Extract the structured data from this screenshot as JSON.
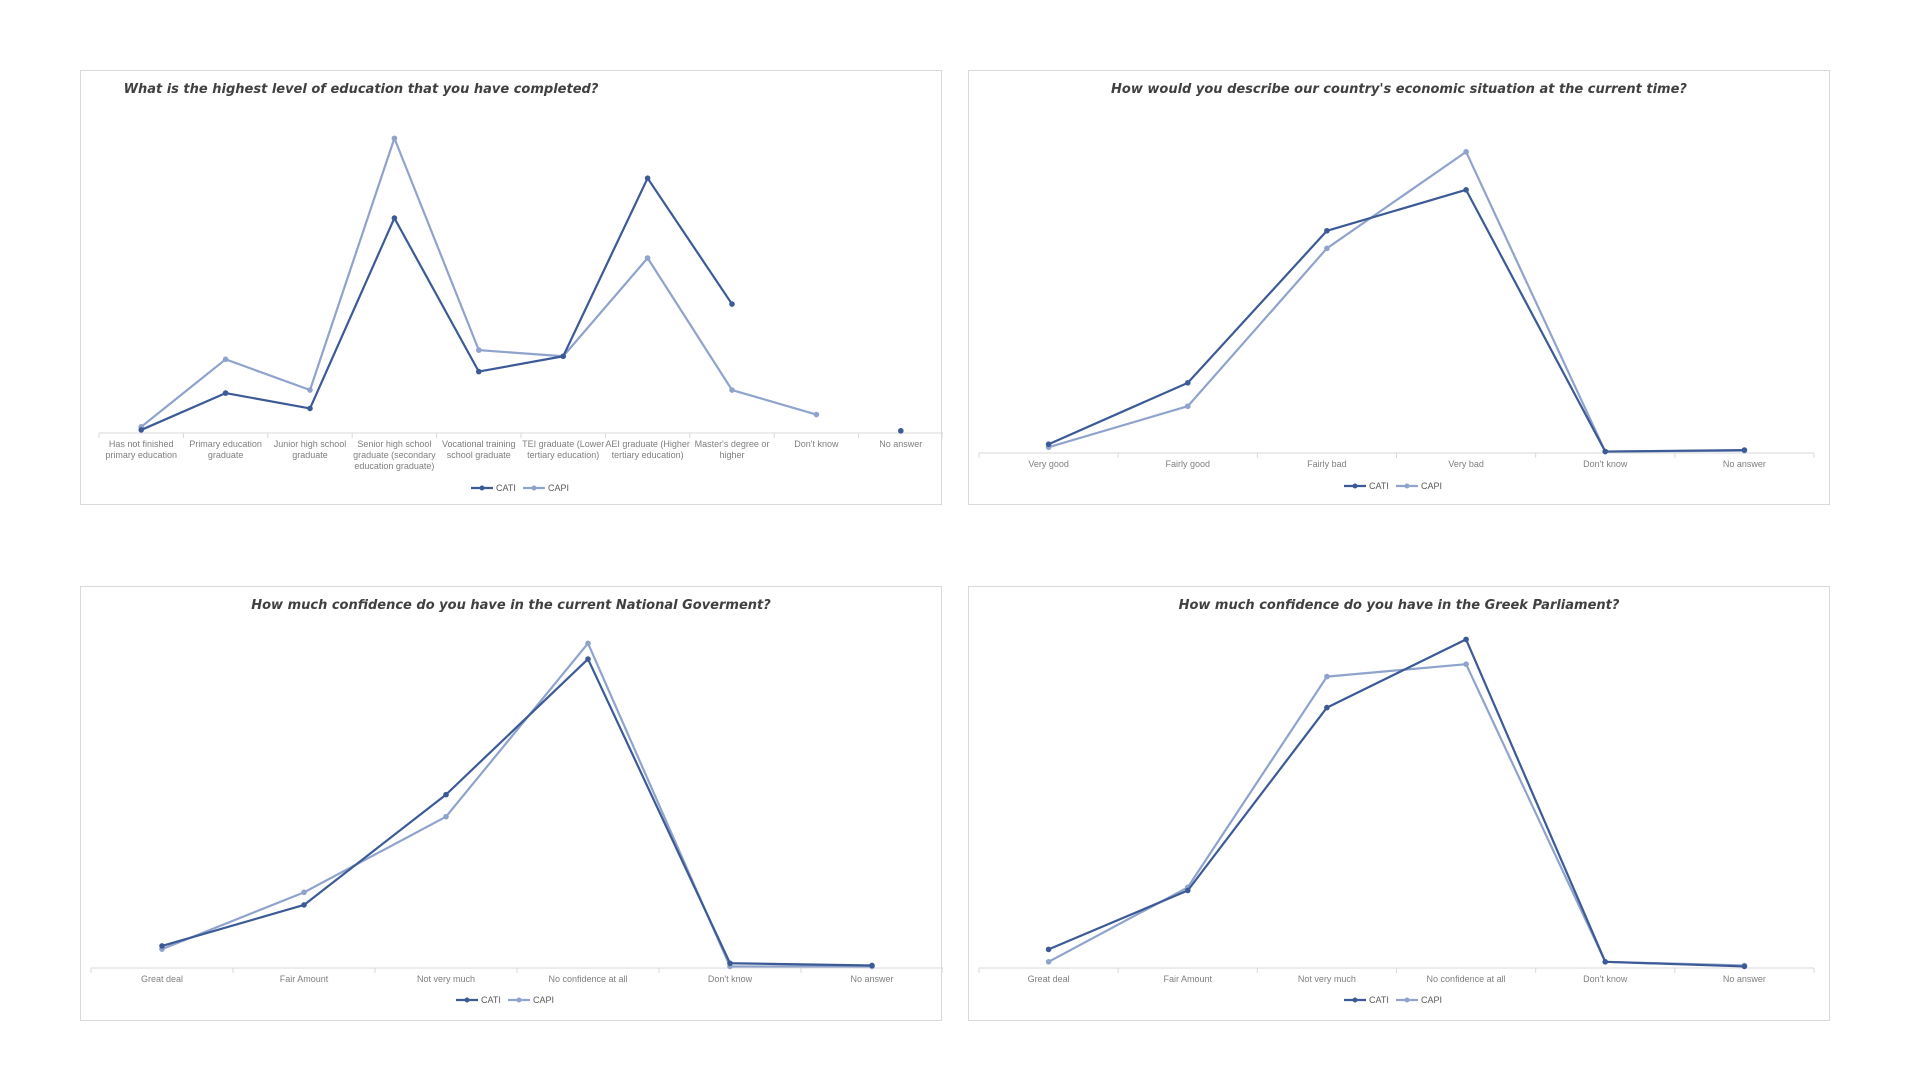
{
  "colors": {
    "cati": "#3c5a96",
    "capi": "#8fa3cc",
    "axis": "#d9d9d9"
  },
  "chart_data": [
    {
      "type": "line",
      "title": "What is the highest level of education that you have completed?",
      "categories": [
        "Has not finished primary education",
        "Primary education graduate",
        "Junior high school graduate",
        "Senior high school graduate (secondary education graduate)",
        "Vocational training school graduate",
        "TEI graduate (Lower tertiary education)",
        "AEI graduate (Higher tertiary education)",
        "Master's degree or higher",
        "Don't know",
        "No answer"
      ],
      "series": [
        {
          "name": "CATI",
          "values": [
            1,
            13,
            8,
            70,
            20,
            25,
            83,
            42,
            null,
            0.7
          ]
        },
        {
          "name": "CAPI",
          "values": [
            2,
            24,
            14,
            96,
            27,
            25,
            57,
            14,
            6,
            null
          ]
        }
      ],
      "ylim": [
        0,
        100
      ],
      "legend": "bottom"
    },
    {
      "type": "line",
      "title": "How would you describe our country's economic situation at the current time?",
      "categories": [
        "Very good",
        "Fairly good",
        "Fairly bad",
        "Very bad",
        "Don't know",
        "No answer"
      ],
      "series": [
        {
          "name": "CATI",
          "values": [
            3,
            24,
            76,
            90,
            0.5,
            1
          ]
        },
        {
          "name": "CAPI",
          "values": [
            2,
            16,
            70,
            103,
            0.5,
            0.8
          ]
        }
      ],
      "ylim": [
        0,
        105
      ],
      "legend": "bottom"
    },
    {
      "type": "line",
      "title": "How much confidence do you have in the current National Goverment?",
      "categories": [
        "Great deal",
        "Fair Amount",
        "Not very much",
        "No confidence at all",
        "Don't know",
        "No answer"
      ],
      "series": [
        {
          "name": "CATI",
          "values": [
            7,
            20,
            55,
            98,
            1.5,
            0.8
          ]
        },
        {
          "name": "CAPI",
          "values": [
            6,
            24,
            48,
            103,
            0.5,
            0.5
          ]
        }
      ],
      "ylim": [
        0,
        105
      ],
      "legend": "bottom"
    },
    {
      "type": "line",
      "title": "How much confidence do you have in the Greek Parliament?",
      "categories": [
        "Great deal",
        "Fair Amount",
        "Not very much",
        "No confidence at all",
        "Don't know",
        "No answer"
      ],
      "series": [
        {
          "name": "CATI",
          "values": [
            6,
            25,
            84,
            106,
            2,
            0.5
          ]
        },
        {
          "name": "CAPI",
          "values": [
            2,
            26,
            94,
            98,
            2,
            0.8
          ]
        }
      ],
      "ylim": [
        0,
        110
      ],
      "legend": "bottom"
    }
  ]
}
